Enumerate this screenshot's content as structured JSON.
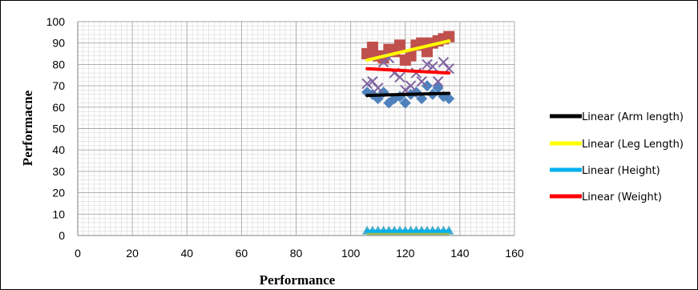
{
  "chart_data": {
    "type": "scatter",
    "xlabel": "Performance",
    "ylabel": "Performacne",
    "xlim": [
      0,
      160
    ],
    "ylim": [
      0,
      100
    ],
    "x_ticks": [
      "0",
      "20",
      "40",
      "60",
      "80",
      "100",
      "120",
      "140",
      "160"
    ],
    "y_ticks": [
      "0",
      "10",
      "20",
      "30",
      "40",
      "50",
      "60",
      "70",
      "80",
      "90",
      "100"
    ],
    "grid": true,
    "legend_position": "right",
    "series": [
      {
        "marker": "diamond",
        "color": "#4f81bd",
        "points": [
          [
            106,
            67
          ],
          [
            108,
            66
          ],
          [
            110,
            64
          ],
          [
            112,
            67
          ],
          [
            114,
            62
          ],
          [
            116,
            64
          ],
          [
            118,
            65
          ],
          [
            120,
            62
          ],
          [
            122,
            66
          ],
          [
            124,
            67
          ],
          [
            126,
            64
          ],
          [
            128,
            70
          ],
          [
            130,
            66
          ],
          [
            132,
            69
          ],
          [
            134,
            65
          ],
          [
            136,
            64
          ]
        ]
      },
      {
        "marker": "square",
        "color": "#c0504d",
        "points": [
          [
            106,
            85
          ],
          [
            108,
            88
          ],
          [
            110,
            84
          ],
          [
            112,
            83
          ],
          [
            114,
            87
          ],
          [
            116,
            86
          ],
          [
            118,
            89
          ],
          [
            120,
            82
          ],
          [
            122,
            84
          ],
          [
            124,
            89
          ],
          [
            126,
            90
          ],
          [
            128,
            86
          ],
          [
            130,
            90
          ],
          [
            132,
            91
          ],
          [
            134,
            92
          ],
          [
            136,
            93
          ]
        ]
      },
      {
        "marker": "x",
        "color": "#8064a2",
        "points": [
          [
            106,
            71
          ],
          [
            108,
            72
          ],
          [
            110,
            69
          ],
          [
            112,
            81
          ],
          [
            114,
            83
          ],
          [
            116,
            76
          ],
          [
            118,
            74
          ],
          [
            120,
            68
          ],
          [
            122,
            70
          ],
          [
            124,
            76
          ],
          [
            126,
            72
          ],
          [
            128,
            80
          ],
          [
            130,
            79
          ],
          [
            132,
            72
          ],
          [
            134,
            81
          ],
          [
            136,
            78
          ]
        ]
      },
      {
        "marker": "triangle",
        "color": "#4bacc6",
        "points": [
          [
            106,
            2
          ],
          [
            108,
            2
          ],
          [
            110,
            2
          ],
          [
            112,
            2
          ],
          [
            114,
            2
          ],
          [
            116,
            2
          ],
          [
            118,
            2
          ],
          [
            120,
            2
          ],
          [
            122,
            2
          ],
          [
            124,
            2
          ],
          [
            126,
            2
          ],
          [
            128,
            2
          ],
          [
            130,
            2
          ],
          [
            132,
            2
          ],
          [
            134,
            2
          ],
          [
            136,
            2
          ]
        ]
      },
      {
        "marker": "line",
        "color": "#9bbb59",
        "points": [
          [
            106,
            1
          ],
          [
            136,
            1
          ]
        ]
      }
    ],
    "trendlines": [
      {
        "name": "Linear (Arm length)",
        "color": "#000000",
        "from": [
          106,
          65.5
        ],
        "to": [
          136,
          66.5
        ]
      },
      {
        "name": "Linear (Leg Length)",
        "color": "#ffff00",
        "from": [
          106,
          82
        ],
        "to": [
          136,
          91
        ]
      },
      {
        "name": "Linear (Height)",
        "color": "#00b0f0",
        "from": [
          106,
          2
        ],
        "to": [
          136,
          2
        ]
      },
      {
        "name": "Linear (Weight)",
        "color": "#ff0000",
        "from": [
          106,
          78
        ],
        "to": [
          136,
          76
        ]
      }
    ]
  }
}
